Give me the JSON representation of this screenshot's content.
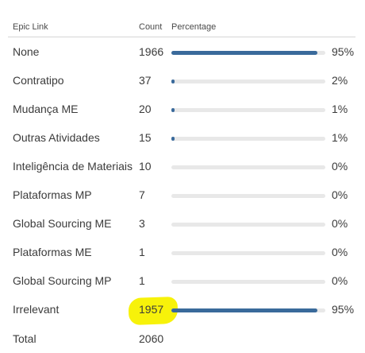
{
  "header": {
    "epic_link": "Epic Link",
    "count": "Count",
    "percentage": "Percentage"
  },
  "rows": [
    {
      "label": "None",
      "count": "1966",
      "pct": "95%",
      "fill": 0.95
    },
    {
      "label": "Contratipo",
      "count": "37",
      "pct": "2%",
      "fill": 0.02
    },
    {
      "label": "Mudança ME",
      "count": "20",
      "pct": "1%",
      "fill": 0.01
    },
    {
      "label": "Outras Atividades",
      "count": "15",
      "pct": "1%",
      "fill": 0.01
    },
    {
      "label": "Inteligência de Materiais",
      "count": "10",
      "pct": "0%",
      "fill": 0.0
    },
    {
      "label": "Plataformas MP",
      "count": "7",
      "pct": "0%",
      "fill": 0.0
    },
    {
      "label": "Global Sourcing ME",
      "count": "3",
      "pct": "0%",
      "fill": 0.0
    },
    {
      "label": "Plataformas ME",
      "count": "1",
      "pct": "0%",
      "fill": 0.0
    },
    {
      "label": "Global Sourcing MP",
      "count": "1",
      "pct": "0%",
      "fill": 0.0
    },
    {
      "label": "Irrelevant",
      "count": "1957",
      "pct": "95%",
      "fill": 0.95
    }
  ],
  "total": {
    "label": "Total",
    "count": "2060"
  },
  "colors": {
    "bar": "#3a6a9b",
    "track": "#e8e8e8",
    "highlight": "#f7f20a"
  }
}
